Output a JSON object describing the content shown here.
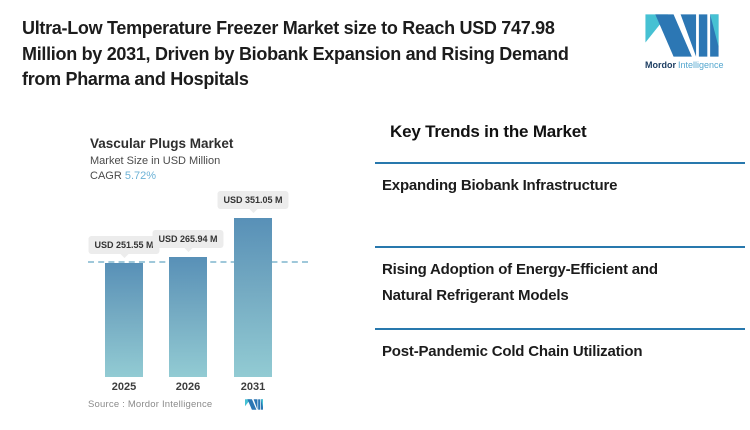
{
  "header": {
    "title": "Ultra-Low Temperature Freezer Market size to Reach USD 747.98\nMillion by 2031, Driven by Biobank Expansion and Rising Demand\nfrom Pharma and Hospitals"
  },
  "brand": {
    "name_bold": "Mordor",
    "name_light": "Intelligence"
  },
  "chart": {
    "title": "Vascular Plugs Market",
    "subtitle": "Market Size in USD Million",
    "cagr_label": "CAGR",
    "cagr_value": "5.72%",
    "source": "Source : Mordor Intelligence"
  },
  "chart_data": {
    "type": "bar",
    "title": "Vascular Plugs Market",
    "ylabel": "Market Size in USD Million",
    "cagr_pct": 5.72,
    "categories": [
      "2025",
      "2026",
      "2031"
    ],
    "values": [
      251.55,
      265.94,
      351.05
    ],
    "value_labels": [
      "USD 251.55 M",
      "USD 265.94 M",
      "USD 351.05 M"
    ],
    "reference_line_value": 251.55,
    "ylim": [
      0,
      400
    ],
    "grid": false,
    "legend": "none",
    "bar_gradient": [
      "#5890b7",
      "#92cbd3"
    ]
  },
  "trends": {
    "heading": "Key Trends in the Market",
    "items": [
      "Expanding Biobank Infrastructure",
      "Rising Adoption of Energy-Efficient and\nNatural Refrigerant Models",
      "Post-Pandemic Cold Chain Utilization"
    ]
  },
  "colors": {
    "divider": "#2878ad",
    "accent_teal": "#46c1d3",
    "accent_blue": "#2c77b4",
    "cagr_value": "#6cb2d6",
    "dashed_line": "#9fc8da",
    "badge_bg": "#ececec"
  }
}
